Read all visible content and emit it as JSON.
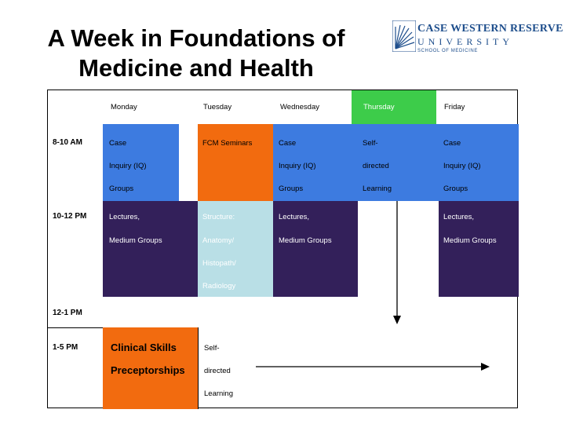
{
  "slide": {
    "title_line1": "A Week in Foundations of",
    "title_line2": "Medicine and Health",
    "logo": {
      "line1": "CASE WESTERN RESERVE",
      "line2": "UNIVERSITY",
      "line3": "SCHOOL OF MEDICINE",
      "color": "#1e4e8c"
    }
  },
  "colors": {
    "blue": "#3d7be0",
    "orange": "#f26b0f",
    "green": "#3dcc4a",
    "purple": "#33205a",
    "lightblue": "#b9dfe6"
  },
  "schedule": {
    "days": [
      "Monday",
      "Tuesday",
      "Wednesday",
      "Thursday",
      "Friday"
    ],
    "times": [
      "8-10 AM",
      "10-12 PM",
      "12-1 PM",
      "1-5 PM"
    ],
    "am": {
      "mon": [
        "Case",
        "Inquiry (IQ)",
        "Groups"
      ],
      "tue": [
        "FCM Seminars"
      ],
      "wed": [
        "Case",
        "Inquiry (IQ)",
        "Groups"
      ],
      "thu": [
        "Self-",
        "directed",
        "Learning"
      ],
      "fri": [
        "Case",
        "Inquiry (IQ)",
        "Groups"
      ]
    },
    "midday": {
      "mon": [
        "Lectures,",
        "Medium Groups"
      ],
      "tue": [
        "Structure:",
        "Anatomy/",
        "Histopath/",
        "Radiology"
      ],
      "wed": [
        "Lectures,",
        "Medium Groups"
      ],
      "fri": [
        "Lectures,",
        "Medium Groups"
      ]
    },
    "pm": {
      "mon": [
        "Clinical Skills",
        "Preceptorships"
      ],
      "tue": [
        "Self-",
        "directed",
        "Learning"
      ]
    }
  }
}
